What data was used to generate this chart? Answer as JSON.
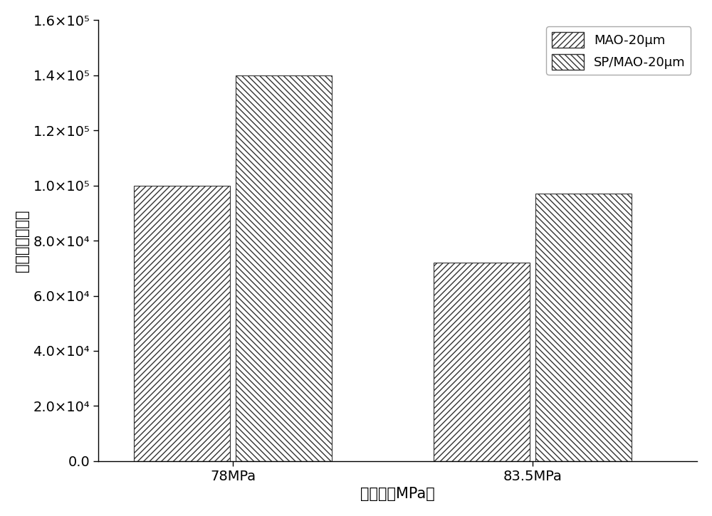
{
  "categories": [
    "78MPa",
    "83.5MPa"
  ],
  "series": [
    {
      "label": "MAO-20μm",
      "values": [
        100000,
        72000
      ],
      "hatch": "////",
      "facecolor": "white",
      "edgecolor": "#333333"
    },
    {
      "label": "SP/MAO-20μm",
      "values": [
        140000,
        97000
      ],
      "hatch": "\\\\\\\\",
      "facecolor": "white",
      "edgecolor": "#333333"
    }
  ],
  "ylabel": "循环周次（次）",
  "xlabel": "应力幅（MPa）",
  "ylim": [
    0,
    160000
  ],
  "yticks": [
    0,
    20000,
    40000,
    60000,
    80000,
    100000,
    120000,
    140000,
    160000
  ],
  "ytick_labels": [
    "0.0",
    "2.0×10⁴",
    "4.0×10⁴",
    "6.0×10⁴",
    "8.0×10⁴",
    "1.0×10⁵",
    "1.2×10⁵",
    "1.4×10⁵",
    "1.6×10⁵"
  ],
  "bar_width": 0.32,
  "background_color": "white",
  "label_fontsize": 15,
  "tick_fontsize": 14,
  "legend_fontsize": 13
}
